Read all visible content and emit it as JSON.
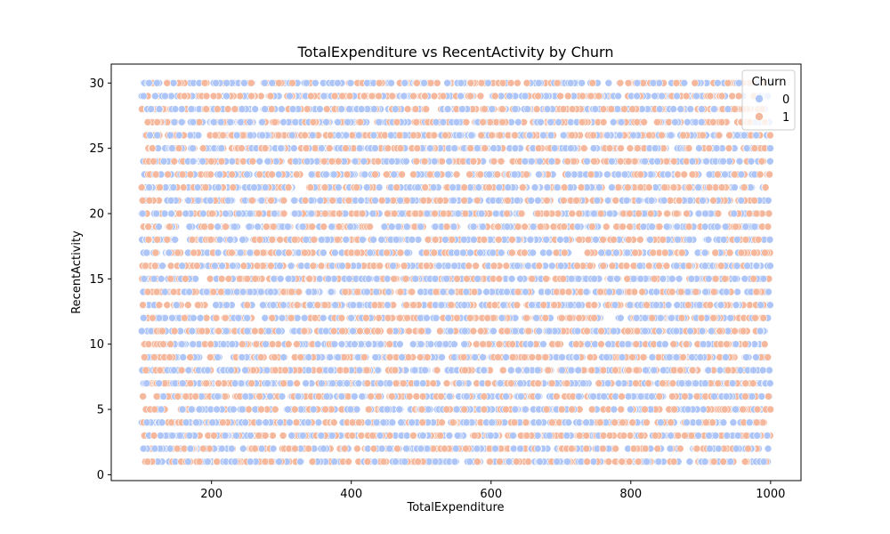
{
  "chart_data": {
    "type": "scatter",
    "title": "TotalExpenditure vs RecentActivity by Churn",
    "xlabel": "TotalExpenditure",
    "ylabel": "RecentActivity",
    "xlim": [
      56.5,
      1043.5
    ],
    "ylim": [
      -0.45,
      31.45
    ],
    "xticks": [
      200,
      400,
      600,
      800,
      1000
    ],
    "yticks": [
      0,
      5,
      10,
      15,
      20,
      25,
      30
    ],
    "grid": false,
    "legend": {
      "title": "Churn",
      "placement": "top-right",
      "entries": [
        "0",
        "1"
      ]
    },
    "series": [
      {
        "name": "0",
        "color": "#aec6f7",
        "edge_color": "#ffffff"
      },
      {
        "name": "1",
        "color": "#f5b89c",
        "edge_color": "#ffffff"
      }
    ],
    "x_range": [
      100,
      1000
    ],
    "y_values": [
      1,
      2,
      3,
      4,
      5,
      6,
      7,
      8,
      9,
      10,
      11,
      12,
      13,
      14,
      15,
      16,
      17,
      18,
      19,
      20,
      21,
      22,
      23,
      24,
      25,
      26,
      27,
      28,
      29,
      30
    ],
    "points_per_row": 300,
    "churn_1_fraction": 0.45
  }
}
